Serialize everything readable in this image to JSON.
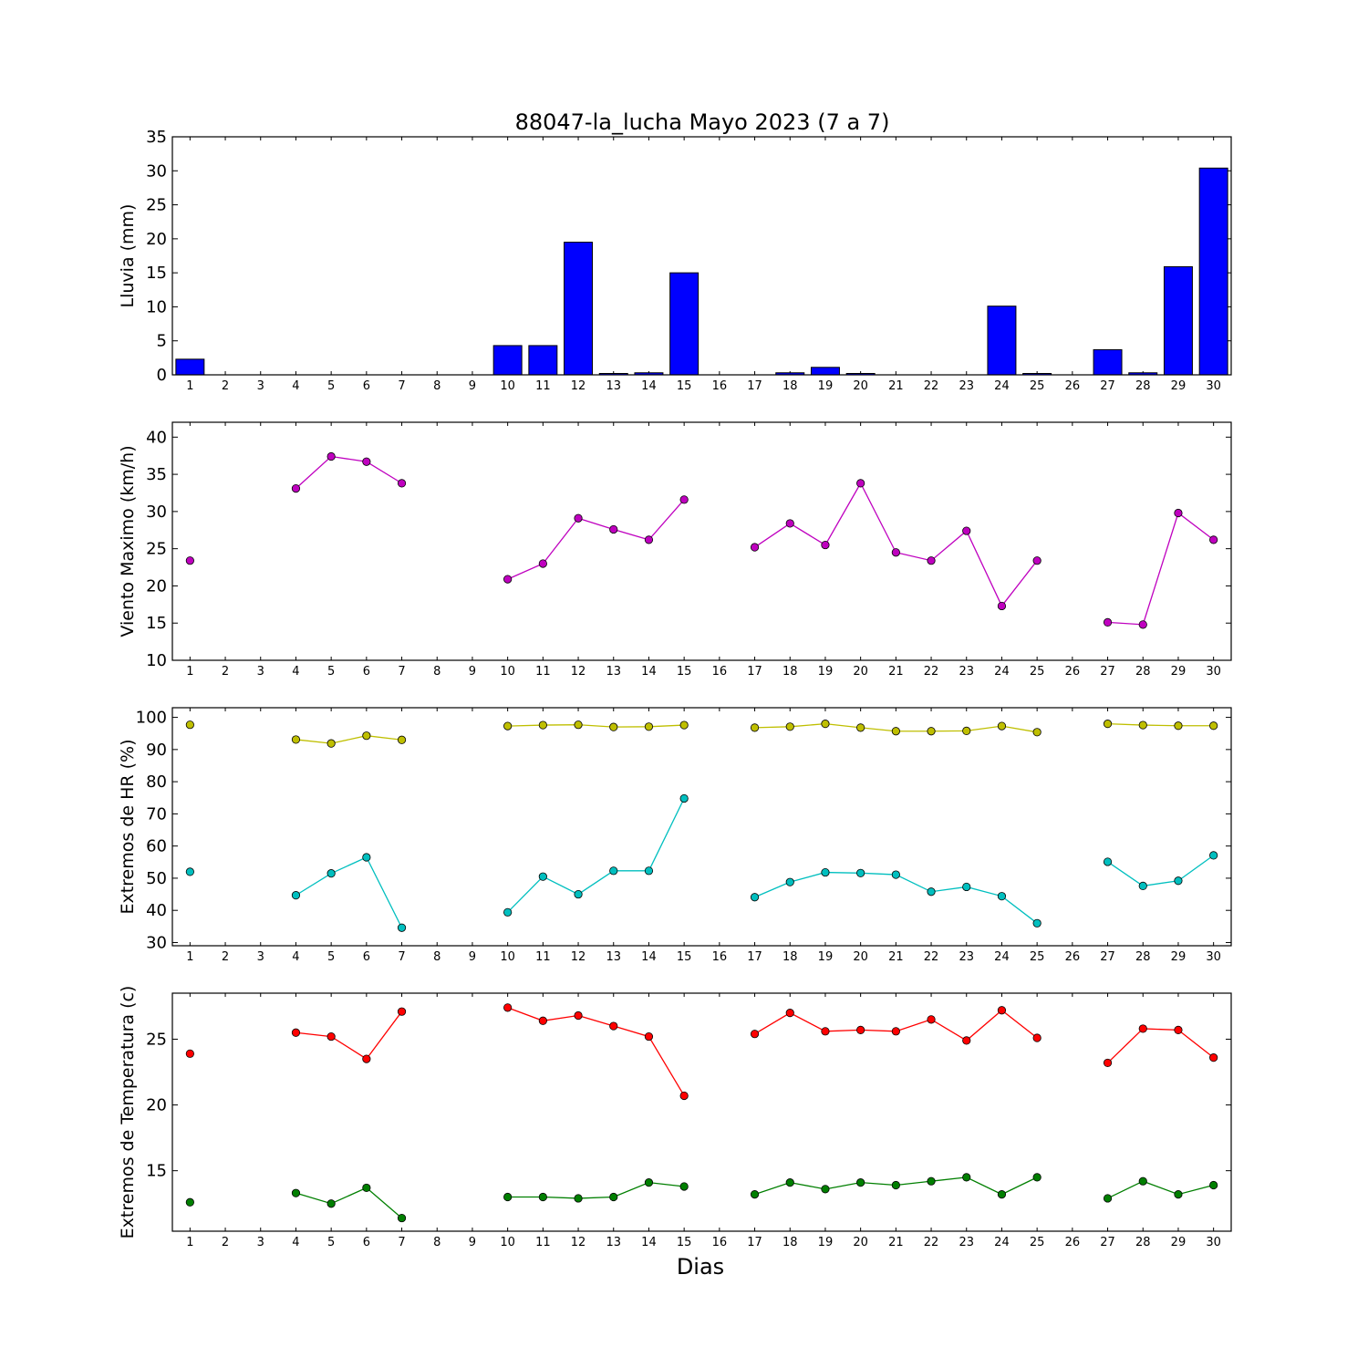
{
  "title": "88047-la_lucha Mayo 2023  (7 a 7)",
  "xlabel": "Dias",
  "chart_data": [
    {
      "type": "bar",
      "ylabel": "Lluvia (mm)",
      "ylim": [
        0,
        35
      ],
      "yticks": [
        0,
        5,
        10,
        15,
        20,
        25,
        30,
        35
      ],
      "categories": [
        1,
        2,
        3,
        4,
        5,
        6,
        7,
        8,
        9,
        10,
        11,
        12,
        13,
        14,
        15,
        16,
        17,
        18,
        19,
        20,
        21,
        22,
        23,
        24,
        25,
        26,
        27,
        28,
        29,
        30
      ],
      "series": [
        {
          "color": "#0000ff",
          "values": [
            2.3,
            0,
            0,
            0,
            0,
            0,
            0,
            0,
            0,
            4.3,
            4.3,
            19.5,
            0.2,
            0.3,
            15.0,
            0,
            0,
            0.3,
            1.1,
            0.2,
            0,
            0,
            0,
            10.1,
            0.2,
            0,
            3.7,
            0.3,
            15.9,
            30.4
          ]
        }
      ]
    },
    {
      "type": "line",
      "ylabel": "Viento Maximo (km/h)",
      "ylim": [
        10,
        42
      ],
      "yticks": [
        10,
        15,
        20,
        25,
        30,
        35,
        40
      ],
      "x": [
        1,
        2,
        3,
        4,
        5,
        6,
        7,
        8,
        9,
        10,
        11,
        12,
        13,
        14,
        15,
        16,
        17,
        18,
        19,
        20,
        21,
        22,
        23,
        24,
        25,
        26,
        27,
        28,
        29,
        30
      ],
      "series": [
        {
          "color": "#bf00bf",
          "values": [
            23.4,
            null,
            null,
            33.1,
            37.4,
            36.7,
            33.8,
            null,
            null,
            20.9,
            23.0,
            29.1,
            27.6,
            26.2,
            31.6,
            null,
            25.2,
            28.4,
            25.5,
            33.8,
            24.5,
            23.4,
            27.4,
            17.3,
            23.4,
            null,
            15.1,
            14.8,
            29.8,
            26.2
          ]
        }
      ]
    },
    {
      "type": "line",
      "ylabel": "Extremos de HR (%)",
      "ylim": [
        29,
        103
      ],
      "yticks": [
        30,
        40,
        50,
        60,
        70,
        80,
        90,
        100
      ],
      "x": [
        1,
        2,
        3,
        4,
        5,
        6,
        7,
        8,
        9,
        10,
        11,
        12,
        13,
        14,
        15,
        16,
        17,
        18,
        19,
        20,
        21,
        22,
        23,
        24,
        25,
        26,
        27,
        28,
        29,
        30
      ],
      "series": [
        {
          "color": "#bfbf00",
          "values": [
            97.7,
            null,
            null,
            93.1,
            91.9,
            94.3,
            93.0,
            null,
            null,
            97.3,
            97.6,
            97.7,
            97.0,
            97.1,
            97.6,
            null,
            96.8,
            97.1,
            98.0,
            96.8,
            95.7,
            95.7,
            95.8,
            97.3,
            95.4,
            null,
            98.0,
            97.6,
            97.4,
            97.4
          ]
        },
        {
          "color": "#00bfbf",
          "values": [
            52.0,
            null,
            null,
            44.7,
            51.5,
            56.5,
            34.6,
            null,
            null,
            39.4,
            50.5,
            45.0,
            52.3,
            52.3,
            74.8,
            null,
            44.1,
            48.8,
            51.8,
            51.6,
            51.1,
            45.8,
            47.3,
            44.4,
            36.0,
            null,
            55.1,
            47.6,
            49.2,
            57.1
          ]
        }
      ]
    },
    {
      "type": "line",
      "ylabel": "Extremos de Temperatura (c)",
      "ylim": [
        10.4,
        28.5
      ],
      "yticks": [
        15,
        20,
        25
      ],
      "x": [
        1,
        2,
        3,
        4,
        5,
        6,
        7,
        8,
        9,
        10,
        11,
        12,
        13,
        14,
        15,
        16,
        17,
        18,
        19,
        20,
        21,
        22,
        23,
        24,
        25,
        26,
        27,
        28,
        29,
        30
      ],
      "series": [
        {
          "color": "#ff0000",
          "values": [
            23.9,
            null,
            null,
            25.5,
            25.2,
            23.5,
            27.1,
            null,
            null,
            27.4,
            26.4,
            26.8,
            26.0,
            25.2,
            20.7,
            null,
            25.4,
            27.0,
            25.6,
            25.7,
            25.6,
            26.5,
            24.9,
            27.2,
            25.1,
            null,
            23.2,
            25.8,
            25.7,
            23.6
          ]
        },
        {
          "color": "#007f00",
          "values": [
            12.6,
            null,
            null,
            13.3,
            12.5,
            13.7,
            11.4,
            null,
            null,
            13.0,
            13.0,
            12.9,
            13.0,
            14.1,
            13.8,
            null,
            13.2,
            14.1,
            13.6,
            14.1,
            13.9,
            14.2,
            14.5,
            13.2,
            14.5,
            null,
            12.9,
            14.2,
            13.2,
            13.9
          ]
        }
      ]
    }
  ]
}
